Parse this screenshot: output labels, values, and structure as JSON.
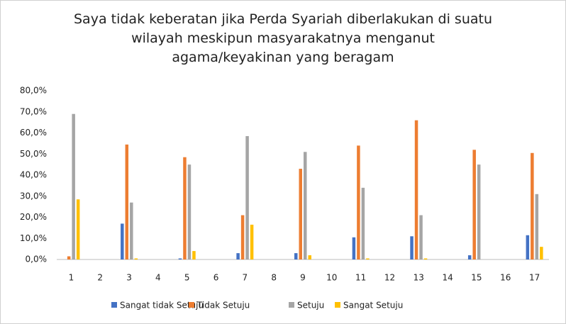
{
  "chart_data": {
    "type": "bar",
    "title": "Saya tidak keberatan jika Perda Syariah diberlakukan di suatu wilayah meskipun masyarakatnya menganut agama/keyakinan yang beragam",
    "categories": [
      "1",
      "2",
      "3",
      "4",
      "5",
      "6",
      "7",
      "8",
      "9",
      "10",
      "11",
      "12",
      "13",
      "14",
      "15",
      "16",
      "17"
    ],
    "series": [
      {
        "name": "Sangat tidak Setuju",
        "color": "#4472c4",
        "values": [
          0,
          null,
          17,
          null,
          0.5,
          null,
          3,
          null,
          3,
          null,
          10.5,
          null,
          11,
          null,
          2,
          null,
          11.5
        ]
      },
      {
        "name": "Tidak Setuju",
        "color": "#ed7d31",
        "values": [
          1.5,
          null,
          54.5,
          null,
          48.5,
          null,
          21,
          null,
          43,
          null,
          54,
          null,
          66,
          null,
          52,
          null,
          50.5
        ]
      },
      {
        "name": "Setuju",
        "color": "#a5a5a5",
        "values": [
          69,
          null,
          27,
          null,
          45,
          null,
          58.5,
          null,
          51,
          null,
          34,
          null,
          21,
          null,
          45,
          null,
          31
        ]
      },
      {
        "name": "Sangat Setuju",
        "color": "#ffc000",
        "values": [
          28.5,
          null,
          0.5,
          null,
          4,
          null,
          16.5,
          null,
          2,
          null,
          0.5,
          null,
          0.5,
          null,
          0,
          null,
          6
        ]
      }
    ],
    "ylim": [
      0,
      80
    ],
    "yticks": [
      {
        "value": 0,
        "label": "0,0%"
      },
      {
        "value": 10,
        "label": "10,0%"
      },
      {
        "value": 20,
        "label": "20,0%"
      },
      {
        "value": 30,
        "label": "30,0%"
      },
      {
        "value": 40,
        "label": "40,0%"
      },
      {
        "value": 50,
        "label": "50,0%"
      },
      {
        "value": 60,
        "label": "60,0%"
      },
      {
        "value": 70,
        "label": "70,0%"
      },
      {
        "value": 80,
        "label": "80,0%"
      }
    ],
    "grid": false
  }
}
